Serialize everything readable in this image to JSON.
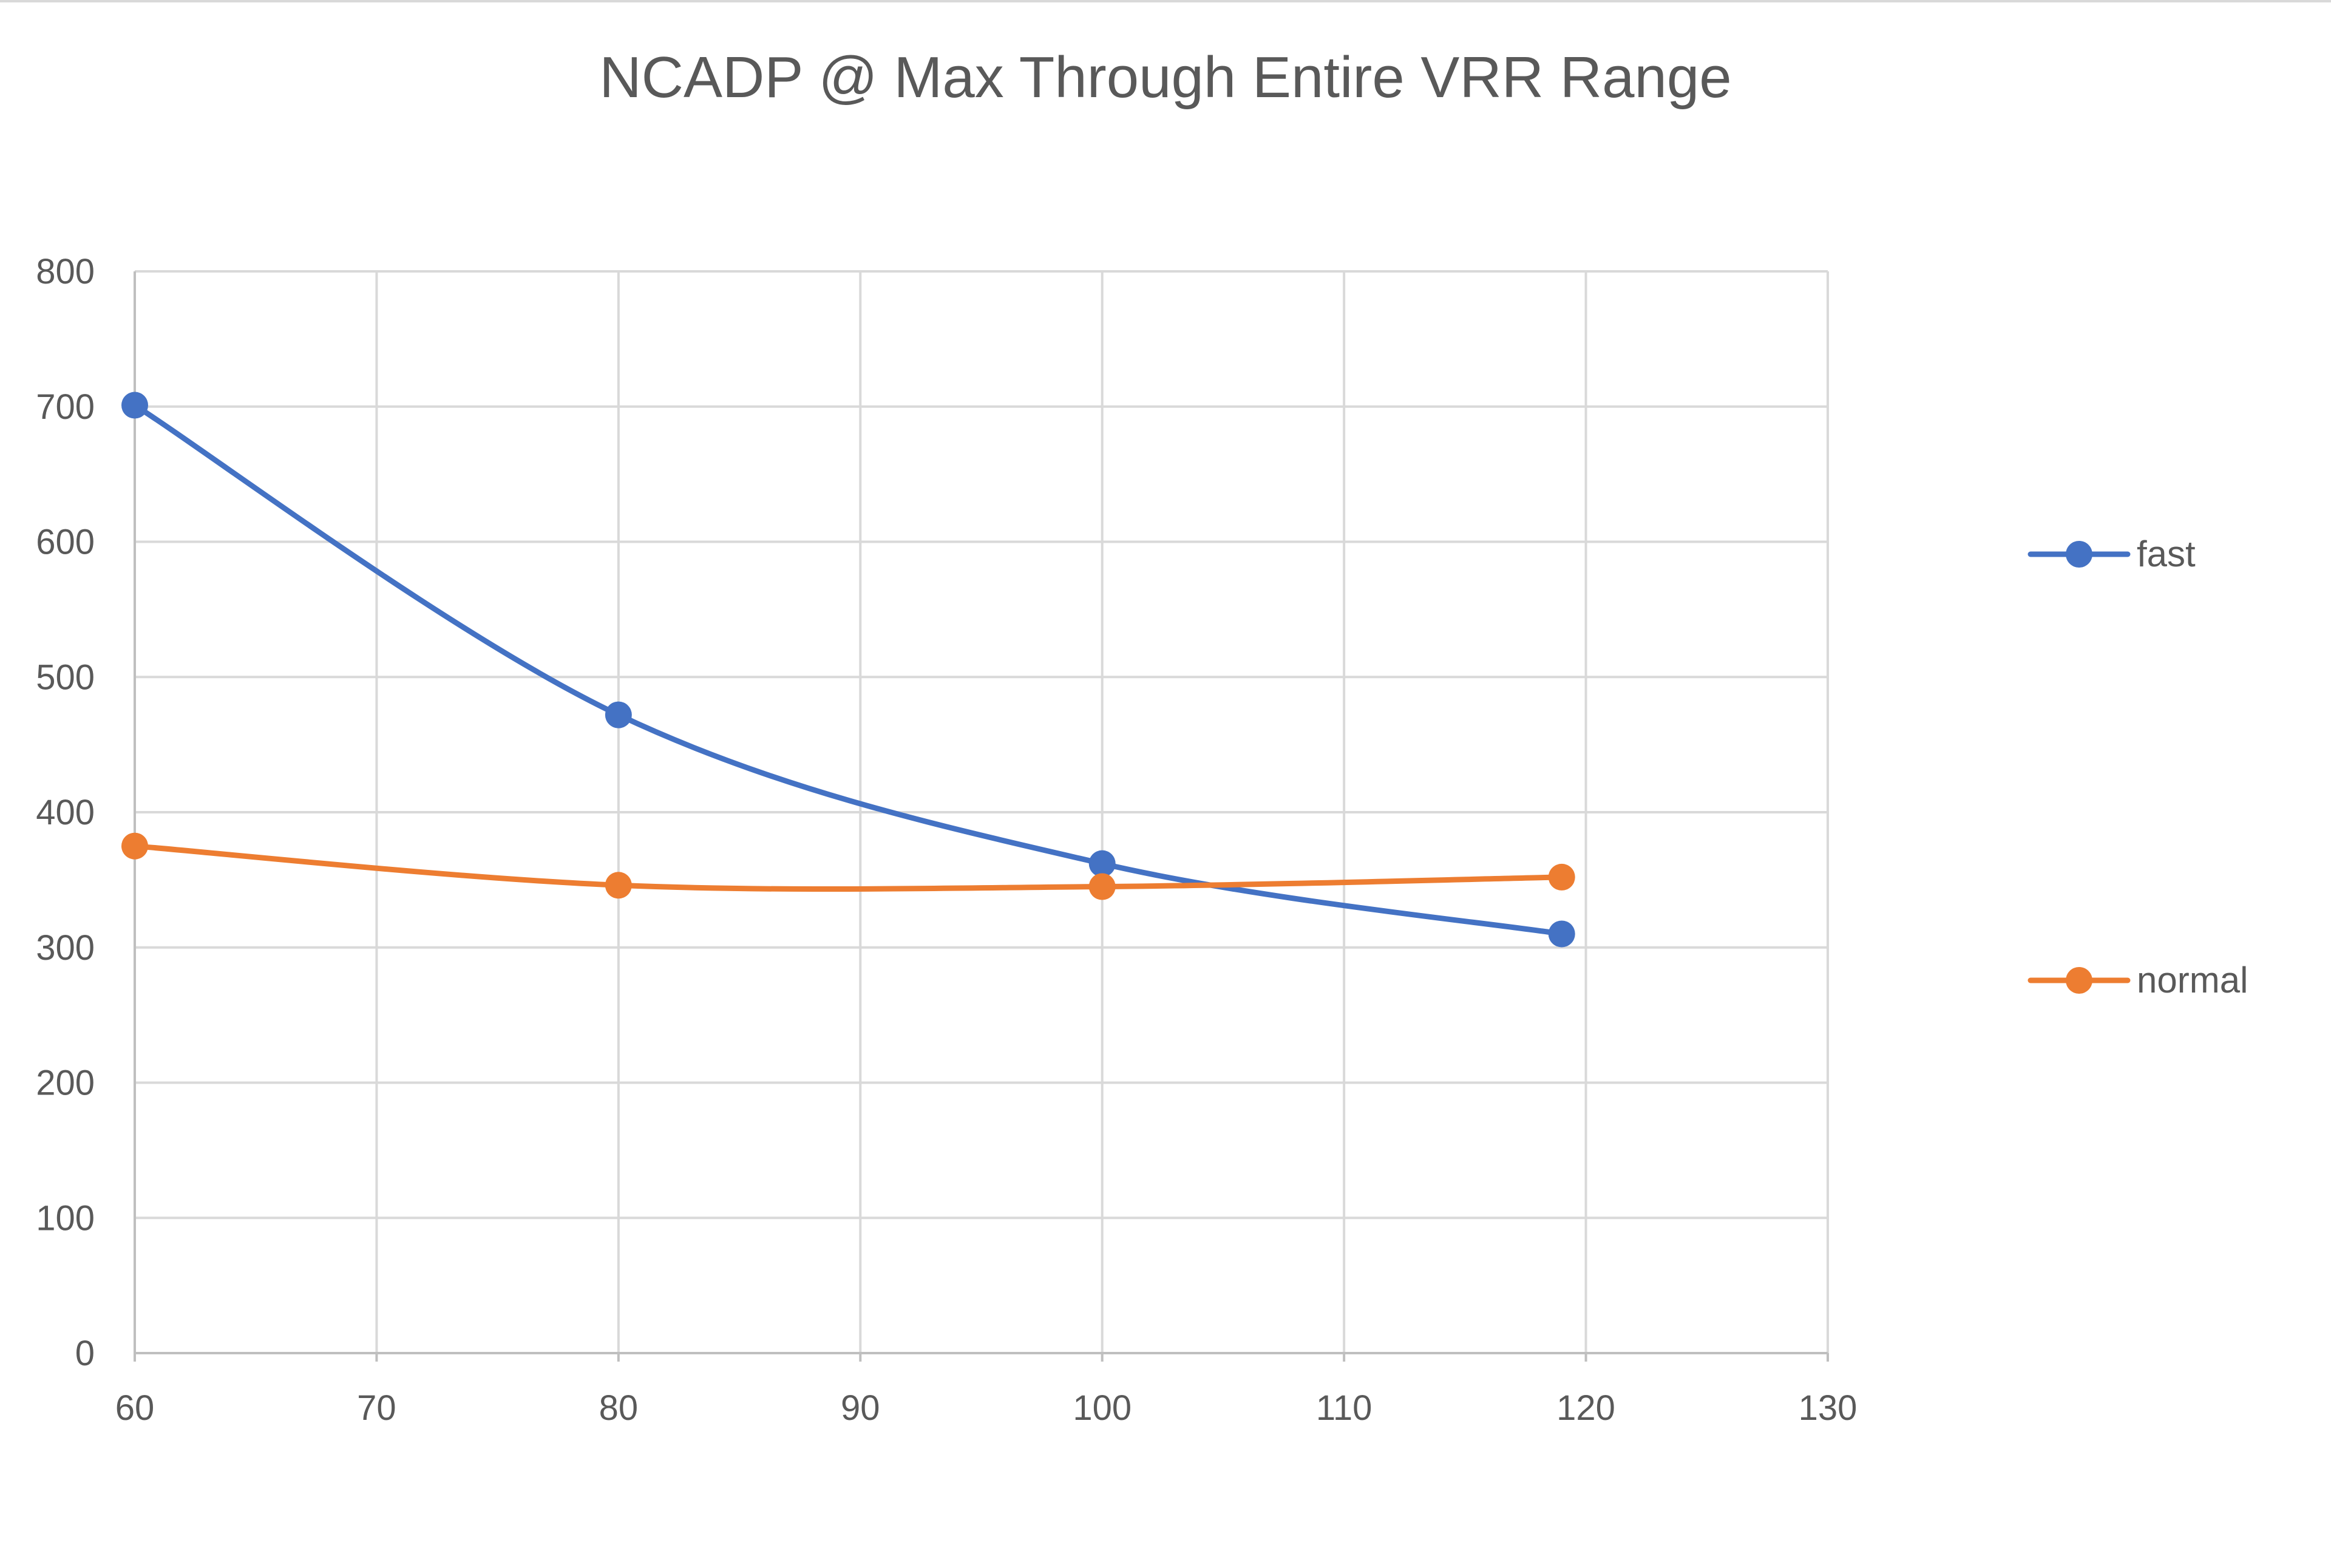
{
  "chart_data": {
    "type": "line",
    "title": "NCADP @ Max Through Entire VRR Range",
    "xlabel": "",
    "ylabel": "",
    "xlim": [
      60,
      130
    ],
    "ylim": [
      0,
      800
    ],
    "x_ticks": [
      60,
      70,
      80,
      90,
      100,
      110,
      120,
      130
    ],
    "y_ticks": [
      0,
      100,
      200,
      300,
      400,
      500,
      600,
      700,
      800
    ],
    "x_tick_labels": [
      "60",
      "70",
      "80",
      "90",
      "100",
      "110",
      "120",
      "130"
    ],
    "y_tick_labels": [
      "0",
      "100",
      "200",
      "300",
      "400",
      "500",
      "600",
      "700",
      "800"
    ],
    "grid": true,
    "smooth": true,
    "legend_position": "right",
    "series": [
      {
        "name": "fast",
        "color": "#4472c4",
        "x": [
          60,
          80,
          100,
          119
        ],
        "y": [
          701,
          472,
          362,
          310
        ]
      },
      {
        "name": "normal",
        "color": "#ed7d31",
        "x": [
          60,
          80,
          100,
          119
        ],
        "y": [
          375,
          346,
          345,
          352
        ]
      }
    ]
  }
}
